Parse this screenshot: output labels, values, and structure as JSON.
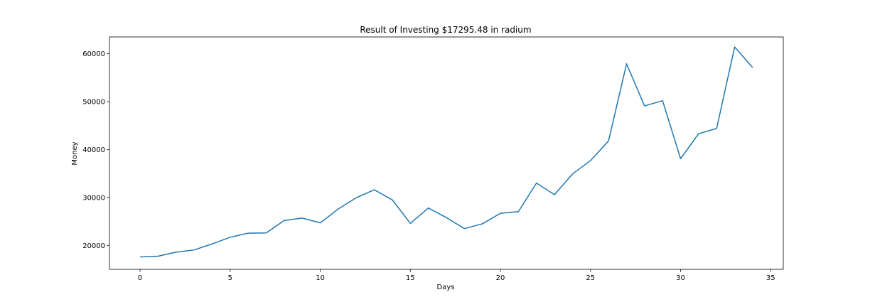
{
  "chart_data": {
    "type": "line",
    "title": "Result of Investing $17295.48 in radium",
    "xlabel": "Days",
    "ylabel": "Money",
    "xlim": [
      -1.7,
      35.7
    ],
    "ylim": [
      15000,
      63500
    ],
    "xticks": [
      0,
      5,
      10,
      15,
      20,
      25,
      30,
      35
    ],
    "yticks": [
      20000,
      30000,
      40000,
      50000,
      60000
    ],
    "grid": false,
    "series": [
      {
        "color": "#1f77b4",
        "x": [
          0,
          1,
          2,
          3,
          4,
          5,
          6,
          7,
          8,
          9,
          10,
          11,
          12,
          13,
          14,
          15,
          16,
          17,
          18,
          19,
          20,
          21,
          22,
          23,
          24,
          25,
          26,
          27,
          28,
          29,
          30,
          31,
          32,
          33,
          34
        ],
        "values": [
          17600,
          17750,
          18600,
          19050,
          20300,
          21700,
          22550,
          22600,
          25200,
          25700,
          24700,
          27600,
          29950,
          31600,
          29500,
          24600,
          27800,
          25800,
          23500,
          24500,
          26700,
          27050,
          33000,
          30600,
          34900,
          37700,
          41800,
          57900,
          49100,
          50200,
          38100,
          43300,
          44400,
          61400,
          57100
        ]
      }
    ]
  }
}
